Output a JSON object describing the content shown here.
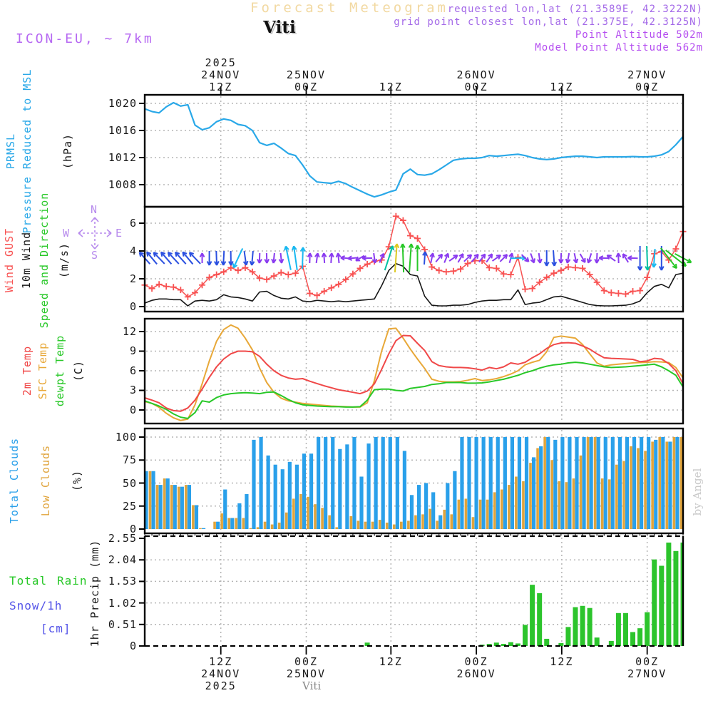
{
  "header": {
    "title": "Forecast Meteogram",
    "station": "Viti",
    "requested": "requested lon,lat (21.3589E, 42.3222N)",
    "grid_point": "grid point closest lon,lat (21.375E, 42.3125N)",
    "point_altitude": "Point Altitude 502m",
    "model_point_altitude": "Model Point Altitude 562m"
  },
  "model_label": "ICON-EU, ~ 7km",
  "watermark_right": "by Angel",
  "watermark_bottom": "Viti",
  "colors": {
    "pressure_line": "#29a8e8",
    "gust": "#f85252",
    "wind_10m": "#161616",
    "direction_label": "#28c828",
    "temp_2m": "#f04848",
    "sfc_temp": "#e8a838",
    "dewpt": "#28c828",
    "total_clouds": "#2aa0ea",
    "low_clouds": "#e0a43c",
    "rain": "#2cc42c",
    "snow_label": "#5353e8",
    "title_wheat": "#f2d9a2",
    "purple_text": "#a46ae8",
    "violet_text": "#b44cf0",
    "model_text": "#b668f2",
    "compass": "#b88ced",
    "grid": "#b5b5b5",
    "watermark": "#c9c9c9"
  },
  "axis": {
    "tick_hours": [
      10.6,
      22.5,
      34.3,
      46.2,
      58.1,
      70.0
    ],
    "top_labels": [
      [
        "2025",
        "24NOV",
        "12Z"
      ],
      [
        "25NOV",
        "00Z"
      ],
      [
        "12Z"
      ],
      [
        "26NOV",
        "00Z"
      ],
      [
        "12Z"
      ],
      [
        "27NOV",
        "00Z"
      ]
    ],
    "bottom_labels": [
      [
        "12Z",
        "24NOV",
        "2025"
      ],
      [
        "00Z",
        "25NOV"
      ],
      [
        "12Z"
      ],
      [
        "00Z",
        "26NOV"
      ],
      [
        "12Z"
      ],
      [
        "00Z",
        "27NOV"
      ]
    ]
  },
  "panels": {
    "pressure": {
      "title": "PRMSL",
      "subtitle": "Pressure Reduced to MSL",
      "unit": "(hPa)",
      "yticks": [
        1020,
        1016,
        1012,
        1008
      ]
    },
    "wind": {
      "label_gust": "Wind GUST",
      "label_wind": "10m Wind",
      "label_dir": "Speed and Direction",
      "unit": "(m/s)",
      "yticks": [
        6,
        4,
        2,
        0
      ],
      "compass": {
        "n": "N",
        "e": "E",
        "s": "S",
        "w": "W"
      }
    },
    "temp": {
      "label_2m": "2m Temp",
      "label_sfc": "SFC Temp",
      "label_dewpt": "dewpt Temp",
      "unit": "(C)",
      "yticks": [
        12,
        9,
        6,
        3,
        0
      ]
    },
    "clouds": {
      "label_total": "Total Clouds",
      "label_low": "Low Clouds",
      "unit": "(%)",
      "yticks": [
        100,
        75,
        50,
        25,
        0
      ]
    },
    "precip": {
      "label_total": "Total",
      "label_rain": "Rain",
      "label_snow": "Snow/1h",
      "label_cm": "[cm]",
      "unit": "1hr Precip (mm)",
      "yticks": [
        2.55,
        2.04,
        1.53,
        1.02,
        0.51,
        0
      ]
    }
  },
  "chart_data": [
    {
      "type": "line",
      "name": "prmsl_pressure",
      "ylabel": "(hPa)",
      "ylim": [
        1004.5,
        1021.5
      ],
      "grid": true,
      "values": [
        1019.2,
        1018.8,
        1018.6,
        1019.5,
        1020.1,
        1019.6,
        1019.8,
        1016.8,
        1016.1,
        1016.4,
        1017.3,
        1017.7,
        1017.5,
        1016.9,
        1016.7,
        1016.0,
        1014.2,
        1013.8,
        1014.1,
        1013.4,
        1012.6,
        1012.3,
        1010.9,
        1009.3,
        1008.4,
        1008.3,
        1008.2,
        1008.5,
        1008.15,
        1007.6,
        1007.1,
        1006.6,
        1006.2,
        1006.5,
        1006.9,
        1007.2,
        1009.6,
        1010.3,
        1009.5,
        1009.4,
        1009.6,
        1010.2,
        1010.9,
        1011.6,
        1011.8,
        1011.9,
        1011.9,
        1012.0,
        1012.3,
        1012.2,
        1012.3,
        1012.4,
        1012.5,
        1012.3,
        1012.0,
        1011.8,
        1011.7,
        1011.8,
        1012.0,
        1012.1,
        1012.2,
        1012.2,
        1012.1,
        1012.0,
        1012.1,
        1012.1,
        1012.1,
        1012.1,
        1012.15,
        1012.1,
        1012.1,
        1012.2,
        1012.4,
        1012.9,
        1013.9,
        1015.1
      ]
    },
    {
      "type": "line",
      "name": "wind",
      "ylabel": "(m/s)",
      "ylim": [
        0,
        7.5
      ],
      "grid": true,
      "series": [
        {
          "name": "wind_gust",
          "marker": "plus",
          "values": [
            1.55,
            1.3,
            1.6,
            1.45,
            1.4,
            1.2,
            0.7,
            1.0,
            1.55,
            2.1,
            2.3,
            2.5,
            2.8,
            2.6,
            2.8,
            2.5,
            2.05,
            1.95,
            2.2,
            2.45,
            2.3,
            2.4,
            2.9,
            0.95,
            0.8,
            1.1,
            1.35,
            1.6,
            1.95,
            2.35,
            2.75,
            3.05,
            3.25,
            3.35,
            4.3,
            6.5,
            6.2,
            5.1,
            4.9,
            4.1,
            2.85,
            2.6,
            2.5,
            2.55,
            2.7,
            3.1,
            3.3,
            3.3,
            2.8,
            2.75,
            2.35,
            2.3,
            3.55,
            1.25,
            1.3,
            1.75,
            2.1,
            2.4,
            2.6,
            2.85,
            2.8,
            2.75,
            2.3,
            1.75,
            1.15,
            1.0,
            0.95,
            0.9,
            1.1,
            1.15,
            2.1,
            3.8,
            3.95,
            3.35,
            4.15,
            5.4
          ]
        },
        {
          "name": "wind_10m",
          "values": [
            0.25,
            0.45,
            0.55,
            0.55,
            0.5,
            0.5,
            0.05,
            0.4,
            0.45,
            0.4,
            0.5,
            0.85,
            0.7,
            0.65,
            0.55,
            0.4,
            1.05,
            1.1,
            0.8,
            0.6,
            0.55,
            0.7,
            0.4,
            0.35,
            0.45,
            0.4,
            0.35,
            0.4,
            0.35,
            0.4,
            0.45,
            0.5,
            0.55,
            1.5,
            2.6,
            3.1,
            2.9,
            2.3,
            2.2,
            0.75,
            0.1,
            0.05,
            0.05,
            0.1,
            0.1,
            0.15,
            0.3,
            0.4,
            0.45,
            0.45,
            0.5,
            0.5,
            1.2,
            0.15,
            0.25,
            0.3,
            0.5,
            0.7,
            0.75,
            0.6,
            0.45,
            0.3,
            0.15,
            0.07,
            0.05,
            0.05,
            0.07,
            0.1,
            0.2,
            0.4,
            1.0,
            1.45,
            1.6,
            1.35,
            2.3,
            2.4
          ]
        }
      ],
      "arrows": {
        "palette": {
          "B": "#2b50e0",
          "C": "#18b8f0",
          "T": "#00c0a0",
          "G": "#28c828",
          "Y": "#ddc920",
          "P": "#8a3cf0"
        },
        "colors": [
          "B",
          "B",
          "B",
          "B",
          "B",
          "B",
          "B",
          "B",
          "P",
          "B",
          "B",
          "B",
          "B",
          "C",
          "B",
          "B",
          "P",
          "P",
          "P",
          "P",
          "C",
          "C",
          "C",
          "P",
          "P",
          "P",
          "P",
          "P",
          "P",
          "P",
          "P",
          "P",
          "P",
          "P",
          "T",
          "Y",
          "G",
          "G",
          "G",
          "B",
          "P",
          "P",
          "P",
          "P",
          "P",
          "P",
          "P",
          "P",
          "P",
          "P",
          "P",
          "P",
          "C",
          "P",
          "P",
          "P",
          "B",
          "B",
          "P",
          "P",
          "P",
          "P",
          "P",
          "P",
          "P",
          "P",
          "P",
          "P",
          "P",
          "B",
          "T",
          "C",
          "B",
          "G",
          "G",
          "G"
        ],
        "angles": [
          -42,
          -40,
          -44,
          -41,
          -43,
          -42,
          -40,
          -44,
          0,
          180,
          178,
          183,
          179,
          205,
          172,
          185,
          182,
          178,
          186,
          174,
          -12,
          -8,
          2,
          2,
          8,
          -4,
          4,
          -6,
          -85,
          -95,
          -120,
          -90,
          172,
          25,
          18,
          4,
          -2,
          4,
          0,
          4,
          12,
          40,
          22,
          55,
          30,
          48,
          42,
          38,
          35,
          55,
          45,
          15,
          88,
          135,
          160,
          172,
          180,
          176,
          182,
          190,
          168,
          150,
          198,
          182,
          -88,
          -55,
          -2,
          -32,
          -88,
          180,
          178,
          184,
          180,
          142,
          128,
          118
        ],
        "lengths": [
          22,
          22,
          22,
          22,
          22,
          22,
          22,
          22,
          14,
          20,
          20,
          20,
          20,
          30,
          20,
          20,
          14,
          14,
          14,
          14,
          34,
          34,
          30,
          14,
          14,
          14,
          14,
          14,
          14,
          14,
          14,
          14,
          14,
          14,
          36,
          40,
          40,
          40,
          36,
          18,
          14,
          14,
          14,
          14,
          14,
          14,
          14,
          14,
          14,
          14,
          14,
          14,
          22,
          14,
          14,
          14,
          22,
          22,
          14,
          14,
          14,
          14,
          14,
          14,
          14,
          14,
          14,
          14,
          14,
          34,
          34,
          26,
          34,
          36,
          36,
          26
        ]
      }
    },
    {
      "type": "line",
      "name": "temperature",
      "ylabel": "(C)",
      "ylim": [
        -2,
        14
      ],
      "grid": true,
      "series": [
        {
          "name": "temp_2m",
          "values": [
            1.85,
            1.5,
            1.1,
            0.3,
            -0.1,
            -0.2,
            0.3,
            1.5,
            3.2,
            5.0,
            6.6,
            7.8,
            8.6,
            9.0,
            9.0,
            8.9,
            8.2,
            7.0,
            6.0,
            5.3,
            4.9,
            4.7,
            4.8,
            4.4,
            4.05,
            3.7,
            3.4,
            3.1,
            2.9,
            2.7,
            2.5,
            2.9,
            4.0,
            6.2,
            8.6,
            10.6,
            11.4,
            11.35,
            10.2,
            9.1,
            7.4,
            6.8,
            6.6,
            6.5,
            6.5,
            6.45,
            6.3,
            6.1,
            6.5,
            6.3,
            6.6,
            7.2,
            7.0,
            7.3,
            8.0,
            8.6,
            9.4,
            10.0,
            10.25,
            10.3,
            10.2,
            9.8,
            9.3,
            8.6,
            8.0,
            7.9,
            7.85,
            7.8,
            7.75,
            7.4,
            7.5,
            7.9,
            7.8,
            7.1,
            6.0,
            4.0
          ]
        },
        {
          "name": "sfc_temp",
          "values": [
            1.3,
            1.0,
            0.4,
            -0.5,
            -1.2,
            -1.6,
            -1.4,
            0.8,
            4.0,
            7.5,
            10.5,
            12.3,
            13.0,
            12.5,
            11.0,
            9.2,
            6.4,
            4.2,
            2.7,
            1.8,
            1.4,
            1.2,
            1.0,
            0.9,
            0.8,
            0.7,
            0.6,
            0.55,
            0.5,
            0.45,
            0.45,
            1.1,
            4.5,
            9.0,
            12.4,
            12.5,
            11.0,
            9.3,
            7.8,
            6.35,
            4.7,
            4.4,
            4.3,
            4.3,
            4.35,
            4.55,
            4.8,
            4.5,
            4.6,
            4.8,
            5.1,
            5.5,
            6.0,
            6.9,
            7.3,
            7.6,
            8.9,
            11.1,
            11.3,
            11.15,
            11.0,
            10.0,
            8.6,
            7.2,
            6.7,
            6.9,
            7.0,
            7.1,
            7.2,
            7.25,
            7.3,
            7.4,
            7.35,
            7.25,
            6.5,
            4.9
          ]
        },
        {
          "name": "dewpt_temp",
          "values": [
            1.4,
            1.0,
            0.6,
            0.1,
            -0.6,
            -1.1,
            -1.3,
            -0.4,
            1.4,
            1.2,
            1.9,
            2.3,
            2.5,
            2.6,
            2.65,
            2.6,
            2.5,
            2.7,
            2.75,
            2.2,
            1.6,
            1.1,
            0.8,
            0.7,
            0.6,
            0.55,
            0.5,
            0.5,
            0.45,
            0.45,
            0.5,
            1.5,
            3.1,
            3.2,
            3.2,
            3.0,
            2.9,
            3.3,
            3.45,
            3.6,
            3.9,
            4.0,
            4.2,
            4.2,
            4.2,
            4.1,
            4.1,
            4.15,
            4.3,
            4.5,
            4.7,
            5.0,
            5.3,
            5.7,
            6.0,
            6.4,
            6.7,
            6.9,
            7.0,
            7.2,
            7.3,
            7.2,
            7.0,
            6.8,
            6.6,
            6.5,
            6.55,
            6.6,
            6.7,
            6.8,
            6.9,
            7.0,
            6.6,
            6.0,
            5.3,
            3.5
          ]
        }
      ]
    },
    {
      "type": "bar",
      "name": "clouds",
      "ylabel": "(%)",
      "ylim": [
        0,
        100
      ],
      "grid": true,
      "series": [
        {
          "name": "total_clouds",
          "values": [
            63,
            63,
            48,
            55,
            48,
            46,
            48,
            26,
            1,
            0,
            8,
            43,
            12,
            28,
            38,
            97,
            100,
            80,
            70,
            65,
            73,
            70,
            82,
            82,
            100,
            100,
            100,
            87,
            92,
            100,
            57,
            93,
            100,
            100,
            100,
            100,
            85,
            37,
            48,
            50,
            40,
            15,
            50,
            63,
            100,
            100,
            100,
            100,
            100,
            100,
            100,
            100,
            100,
            100,
            78,
            90,
            100,
            97,
            100,
            100,
            100,
            100,
            100,
            100,
            100,
            100,
            100,
            100,
            100,
            100,
            100,
            97,
            100,
            95,
            100,
            100
          ]
        },
        {
          "name": "low_clouds",
          "values": [
            63,
            63,
            48,
            55,
            48,
            46,
            48,
            26,
            1,
            0,
            8,
            17,
            12,
            12,
            12,
            1,
            2,
            8,
            5,
            7,
            18,
            33,
            38,
            35,
            27,
            23,
            15,
            2,
            0,
            14,
            9,
            8,
            8,
            10,
            7,
            5,
            8,
            9,
            15,
            16,
            22,
            9,
            21,
            16,
            32,
            33,
            13,
            32,
            32,
            40,
            43,
            48,
            57,
            52,
            72,
            88,
            100,
            75,
            52,
            51,
            55,
            80,
            100,
            100,
            55,
            54,
            70,
            74,
            90,
            88,
            85,
            95,
            100,
            95,
            100,
            100
          ]
        }
      ]
    },
    {
      "type": "bar",
      "name": "precip_1hr",
      "ylabel": "1hr Precip (mm)",
      "ylim": [
        0,
        2.55
      ],
      "grid": true,
      "values": [
        0,
        0,
        0,
        0,
        0,
        0,
        0,
        0,
        0,
        0,
        0,
        0,
        0,
        0,
        0,
        0,
        0,
        0,
        0,
        0,
        0,
        0,
        0,
        0,
        0,
        0,
        0,
        0,
        0,
        0,
        0,
        0.08,
        0,
        0,
        0,
        0,
        0,
        0,
        0,
        0,
        0,
        0,
        0,
        0,
        0,
        0,
        0,
        0.03,
        0.05,
        0.08,
        0.05,
        0.09,
        0.06,
        0.5,
        1.45,
        1.25,
        0.17,
        0,
        0.07,
        0.45,
        0.92,
        0.95,
        0.9,
        0.2,
        0,
        0.12,
        0.78,
        0.78,
        0.33,
        0.42,
        0.8,
        2.05,
        1.9,
        2.45,
        2.25,
        2.45
      ]
    }
  ]
}
